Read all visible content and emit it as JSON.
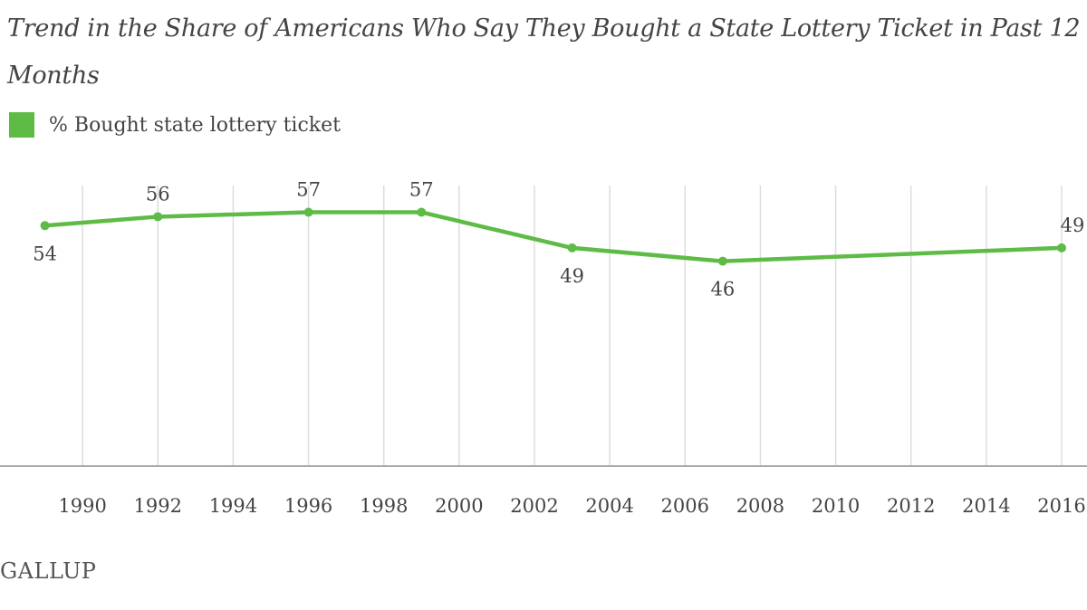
{
  "title": "Trend in the Share of Americans Who Say They Bought a State Lottery Ticket in Past 12 Months",
  "footer": {
    "brand": "GALLUP"
  },
  "colors": {
    "line": "#5dbb46",
    "grid": "#dddddd",
    "text": "#444444"
  },
  "chart_data": {
    "type": "line",
    "title": "Trend in the Share of Americans Who Say They Bought a State Lottery Ticket in Past 12 Months",
    "xlabel": "",
    "ylabel": "",
    "x_ticks": [
      1990,
      1992,
      1994,
      1996,
      1998,
      2000,
      2002,
      2004,
      2006,
      2008,
      2010,
      2012,
      2014,
      2016
    ],
    "xlim": [
      1988,
      2016
    ],
    "ylim": [
      0,
      63
    ],
    "grid": true,
    "legend": "top-left",
    "series": [
      {
        "name": "% Bought state lottery ticket",
        "x": [
          1989,
          1992,
          1996,
          1999,
          2003,
          2007,
          2016
        ],
        "values": [
          54,
          56,
          57,
          57,
          49,
          46,
          49
        ],
        "labels": [
          "54",
          "56",
          "57",
          "57",
          "49",
          "46",
          "49"
        ]
      }
    ]
  }
}
